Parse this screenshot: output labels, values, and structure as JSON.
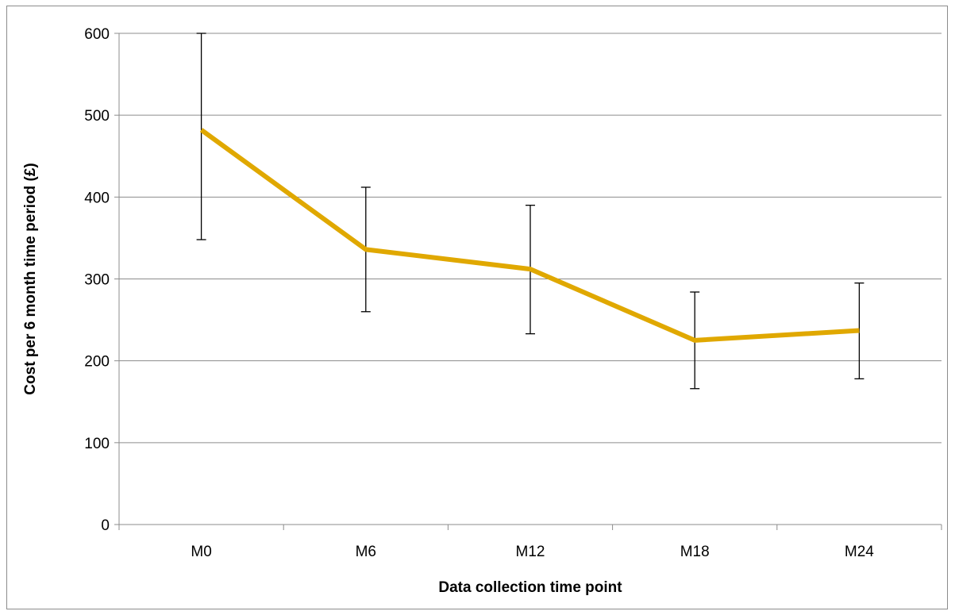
{
  "chart_data": {
    "type": "line",
    "title": "",
    "xlabel": "Data collection time point",
    "ylabel": "Cost per 6 month time period (£)",
    "categories": [
      "M0",
      "M6",
      "M12",
      "M18",
      "M24"
    ],
    "series": [
      {
        "values": [
          482,
          336,
          312,
          225,
          237
        ],
        "error_low": [
          348,
          260,
          233,
          166,
          178
        ],
        "error_high": [
          600,
          412,
          390,
          284,
          295
        ],
        "color": "#E0A800"
      }
    ],
    "ylim": [
      0,
      600
    ],
    "yticks": [
      0,
      100,
      200,
      300,
      400,
      500,
      600
    ],
    "grid": "horizontal",
    "legend": "none"
  }
}
